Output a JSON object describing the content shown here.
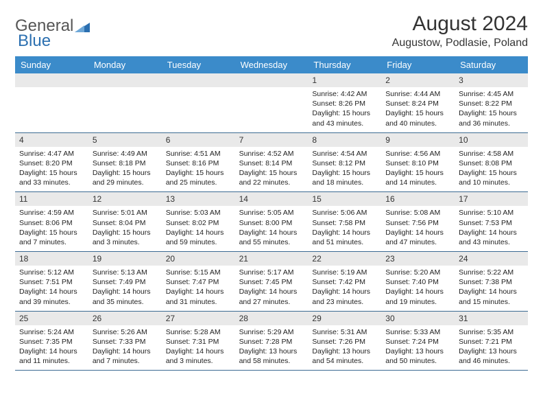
{
  "brand": {
    "part1": "General",
    "part2": "Blue"
  },
  "title": "August 2024",
  "location": "Augustow, Podlasie, Poland",
  "colors": {
    "header_bg": "#3b8bca",
    "header_text": "#ffffff",
    "daynum_bg": "#e9e9e9",
    "row_border": "#3b6a92",
    "text": "#222222",
    "logo_gray": "#555555",
    "logo_blue": "#2b6fb0"
  },
  "dayNames": [
    "Sunday",
    "Monday",
    "Tuesday",
    "Wednesday",
    "Thursday",
    "Friday",
    "Saturday"
  ],
  "weeks": [
    [
      {
        "n": "",
        "sr": "",
        "ss": "",
        "dl": "",
        "dl2": ""
      },
      {
        "n": "",
        "sr": "",
        "ss": "",
        "dl": "",
        "dl2": ""
      },
      {
        "n": "",
        "sr": "",
        "ss": "",
        "dl": "",
        "dl2": ""
      },
      {
        "n": "",
        "sr": "",
        "ss": "",
        "dl": "",
        "dl2": ""
      },
      {
        "n": "1",
        "sr": "Sunrise: 4:42 AM",
        "ss": "Sunset: 8:26 PM",
        "dl": "Daylight: 15 hours",
        "dl2": "and 43 minutes."
      },
      {
        "n": "2",
        "sr": "Sunrise: 4:44 AM",
        "ss": "Sunset: 8:24 PM",
        "dl": "Daylight: 15 hours",
        "dl2": "and 40 minutes."
      },
      {
        "n": "3",
        "sr": "Sunrise: 4:45 AM",
        "ss": "Sunset: 8:22 PM",
        "dl": "Daylight: 15 hours",
        "dl2": "and 36 minutes."
      }
    ],
    [
      {
        "n": "4",
        "sr": "Sunrise: 4:47 AM",
        "ss": "Sunset: 8:20 PM",
        "dl": "Daylight: 15 hours",
        "dl2": "and 33 minutes."
      },
      {
        "n": "5",
        "sr": "Sunrise: 4:49 AM",
        "ss": "Sunset: 8:18 PM",
        "dl": "Daylight: 15 hours",
        "dl2": "and 29 minutes."
      },
      {
        "n": "6",
        "sr": "Sunrise: 4:51 AM",
        "ss": "Sunset: 8:16 PM",
        "dl": "Daylight: 15 hours",
        "dl2": "and 25 minutes."
      },
      {
        "n": "7",
        "sr": "Sunrise: 4:52 AM",
        "ss": "Sunset: 8:14 PM",
        "dl": "Daylight: 15 hours",
        "dl2": "and 22 minutes."
      },
      {
        "n": "8",
        "sr": "Sunrise: 4:54 AM",
        "ss": "Sunset: 8:12 PM",
        "dl": "Daylight: 15 hours",
        "dl2": "and 18 minutes."
      },
      {
        "n": "9",
        "sr": "Sunrise: 4:56 AM",
        "ss": "Sunset: 8:10 PM",
        "dl": "Daylight: 15 hours",
        "dl2": "and 14 minutes."
      },
      {
        "n": "10",
        "sr": "Sunrise: 4:58 AM",
        "ss": "Sunset: 8:08 PM",
        "dl": "Daylight: 15 hours",
        "dl2": "and 10 minutes."
      }
    ],
    [
      {
        "n": "11",
        "sr": "Sunrise: 4:59 AM",
        "ss": "Sunset: 8:06 PM",
        "dl": "Daylight: 15 hours",
        "dl2": "and 7 minutes."
      },
      {
        "n": "12",
        "sr": "Sunrise: 5:01 AM",
        "ss": "Sunset: 8:04 PM",
        "dl": "Daylight: 15 hours",
        "dl2": "and 3 minutes."
      },
      {
        "n": "13",
        "sr": "Sunrise: 5:03 AM",
        "ss": "Sunset: 8:02 PM",
        "dl": "Daylight: 14 hours",
        "dl2": "and 59 minutes."
      },
      {
        "n": "14",
        "sr": "Sunrise: 5:05 AM",
        "ss": "Sunset: 8:00 PM",
        "dl": "Daylight: 14 hours",
        "dl2": "and 55 minutes."
      },
      {
        "n": "15",
        "sr": "Sunrise: 5:06 AM",
        "ss": "Sunset: 7:58 PM",
        "dl": "Daylight: 14 hours",
        "dl2": "and 51 minutes."
      },
      {
        "n": "16",
        "sr": "Sunrise: 5:08 AM",
        "ss": "Sunset: 7:56 PM",
        "dl": "Daylight: 14 hours",
        "dl2": "and 47 minutes."
      },
      {
        "n": "17",
        "sr": "Sunrise: 5:10 AM",
        "ss": "Sunset: 7:53 PM",
        "dl": "Daylight: 14 hours",
        "dl2": "and 43 minutes."
      }
    ],
    [
      {
        "n": "18",
        "sr": "Sunrise: 5:12 AM",
        "ss": "Sunset: 7:51 PM",
        "dl": "Daylight: 14 hours",
        "dl2": "and 39 minutes."
      },
      {
        "n": "19",
        "sr": "Sunrise: 5:13 AM",
        "ss": "Sunset: 7:49 PM",
        "dl": "Daylight: 14 hours",
        "dl2": "and 35 minutes."
      },
      {
        "n": "20",
        "sr": "Sunrise: 5:15 AM",
        "ss": "Sunset: 7:47 PM",
        "dl": "Daylight: 14 hours",
        "dl2": "and 31 minutes."
      },
      {
        "n": "21",
        "sr": "Sunrise: 5:17 AM",
        "ss": "Sunset: 7:45 PM",
        "dl": "Daylight: 14 hours",
        "dl2": "and 27 minutes."
      },
      {
        "n": "22",
        "sr": "Sunrise: 5:19 AM",
        "ss": "Sunset: 7:42 PM",
        "dl": "Daylight: 14 hours",
        "dl2": "and 23 minutes."
      },
      {
        "n": "23",
        "sr": "Sunrise: 5:20 AM",
        "ss": "Sunset: 7:40 PM",
        "dl": "Daylight: 14 hours",
        "dl2": "and 19 minutes."
      },
      {
        "n": "24",
        "sr": "Sunrise: 5:22 AM",
        "ss": "Sunset: 7:38 PM",
        "dl": "Daylight: 14 hours",
        "dl2": "and 15 minutes."
      }
    ],
    [
      {
        "n": "25",
        "sr": "Sunrise: 5:24 AM",
        "ss": "Sunset: 7:35 PM",
        "dl": "Daylight: 14 hours",
        "dl2": "and 11 minutes."
      },
      {
        "n": "26",
        "sr": "Sunrise: 5:26 AM",
        "ss": "Sunset: 7:33 PM",
        "dl": "Daylight: 14 hours",
        "dl2": "and 7 minutes."
      },
      {
        "n": "27",
        "sr": "Sunrise: 5:28 AM",
        "ss": "Sunset: 7:31 PM",
        "dl": "Daylight: 14 hours",
        "dl2": "and 3 minutes."
      },
      {
        "n": "28",
        "sr": "Sunrise: 5:29 AM",
        "ss": "Sunset: 7:28 PM",
        "dl": "Daylight: 13 hours",
        "dl2": "and 58 minutes."
      },
      {
        "n": "29",
        "sr": "Sunrise: 5:31 AM",
        "ss": "Sunset: 7:26 PM",
        "dl": "Daylight: 13 hours",
        "dl2": "and 54 minutes."
      },
      {
        "n": "30",
        "sr": "Sunrise: 5:33 AM",
        "ss": "Sunset: 7:24 PM",
        "dl": "Daylight: 13 hours",
        "dl2": "and 50 minutes."
      },
      {
        "n": "31",
        "sr": "Sunrise: 5:35 AM",
        "ss": "Sunset: 7:21 PM",
        "dl": "Daylight: 13 hours",
        "dl2": "and 46 minutes."
      }
    ]
  ]
}
